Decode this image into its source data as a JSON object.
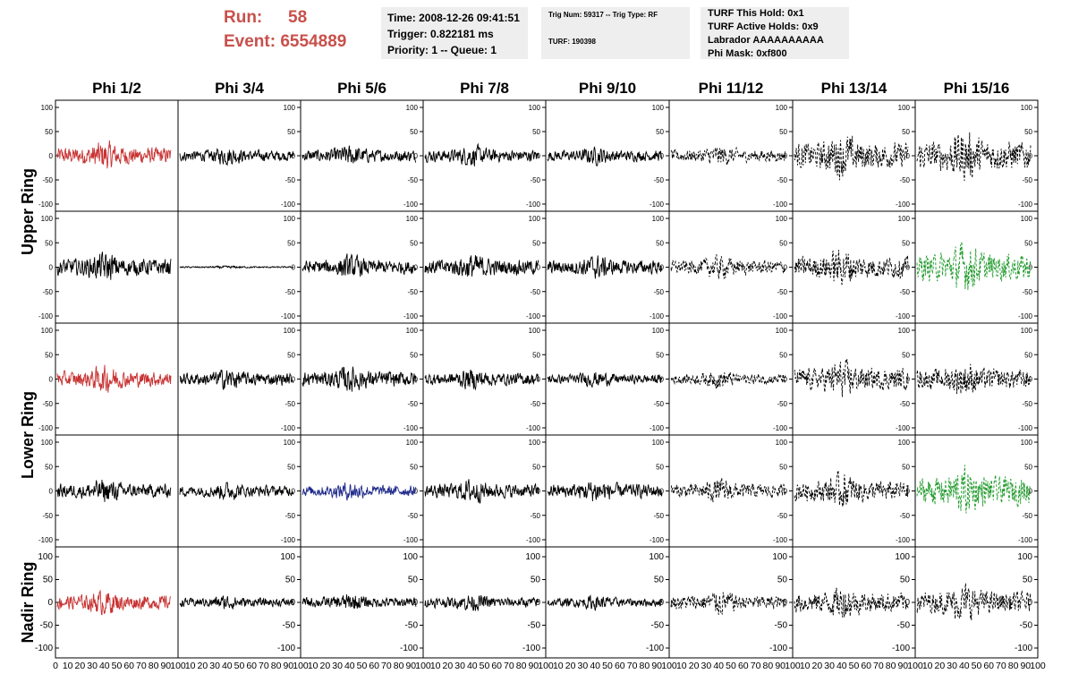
{
  "header": {
    "run_label": "Run:",
    "run_value": "58",
    "event_label": "Event:",
    "event_value": "6554889",
    "time": "Time: 2008-12-26 09:41:51",
    "trigger": "Trigger: 0.822181 ms",
    "priority": "Priority: 1 -- Queue: 1",
    "trig_num": "Trig Num: 59317 -- Trig Type: RF",
    "turf": "TURF: 190398",
    "turf_hold": "TURF This Hold: 0x1",
    "turf_active": "TURF Active Holds: 0x9",
    "labrador": "Labrador AAAAAAAAAA",
    "phi_mask": "Phi Mask: 0xf800"
  },
  "chart_data": {
    "type": "line",
    "columns": [
      "Phi 1/2",
      "Phi 3/4",
      "Phi 5/6",
      "Phi 7/8",
      "Phi 9/10",
      "Phi 11/12",
      "Phi 13/14",
      "Phi 15/16"
    ],
    "rows": [
      {
        "name": "Upper Ring",
        "panels": 2
      },
      {
        "name": "Lower Ring",
        "panels": 2
      },
      {
        "name": "Nadir Ring",
        "panels": 1
      }
    ],
    "ylim": [
      -100,
      100
    ],
    "xlim": [
      0,
      100
    ],
    "y_ticks_small": [
      100,
      50,
      0,
      -50,
      -100
    ],
    "y_tick_labels_small": [
      "100",
      "50",
      "0",
      "-50",
      "-100"
    ],
    "y_ticks_large": [
      100,
      50,
      0,
      -50,
      -100
    ],
    "y_tick_labels_large": [
      "100",
      "50",
      "0",
      "-50",
      "-100"
    ],
    "x_tick_labels_first": [
      "0",
      "10",
      "20",
      "30",
      "40",
      "50",
      "60",
      "70",
      "80",
      "90",
      "100"
    ],
    "x_tick_labels": [
      "10",
      "20",
      "30",
      "40",
      "50",
      "60",
      "70",
      "80",
      "90",
      "100"
    ],
    "colors": {
      "default": "#000000",
      "red": "#c83232",
      "green": "#1f9a2a",
      "blue": "#1f2a8a"
    },
    "panel_amplitudes": [
      [
        22,
        14,
        16,
        16,
        14,
        16,
        34,
        38
      ],
      [
        22,
        2,
        18,
        20,
        18,
        18,
        28,
        36
      ],
      [
        20,
        16,
        20,
        16,
        12,
        14,
        28,
        26
      ],
      [
        18,
        14,
        14,
        18,
        18,
        18,
        26,
        36
      ],
      [
        20,
        12,
        14,
        14,
        12,
        20,
        28,
        30
      ]
    ],
    "highlights": [
      {
        "row": 0,
        "col": 0,
        "color": "red"
      },
      {
        "row": 1,
        "col": 7,
        "color": "green"
      },
      {
        "row": 2,
        "col": 0,
        "color": "red"
      },
      {
        "row": 3,
        "col": 2,
        "color": "blue"
      },
      {
        "row": 3,
        "col": 7,
        "color": "green"
      },
      {
        "row": 4,
        "col": 0,
        "color": "red"
      }
    ],
    "dashed_from_col": 5
  }
}
